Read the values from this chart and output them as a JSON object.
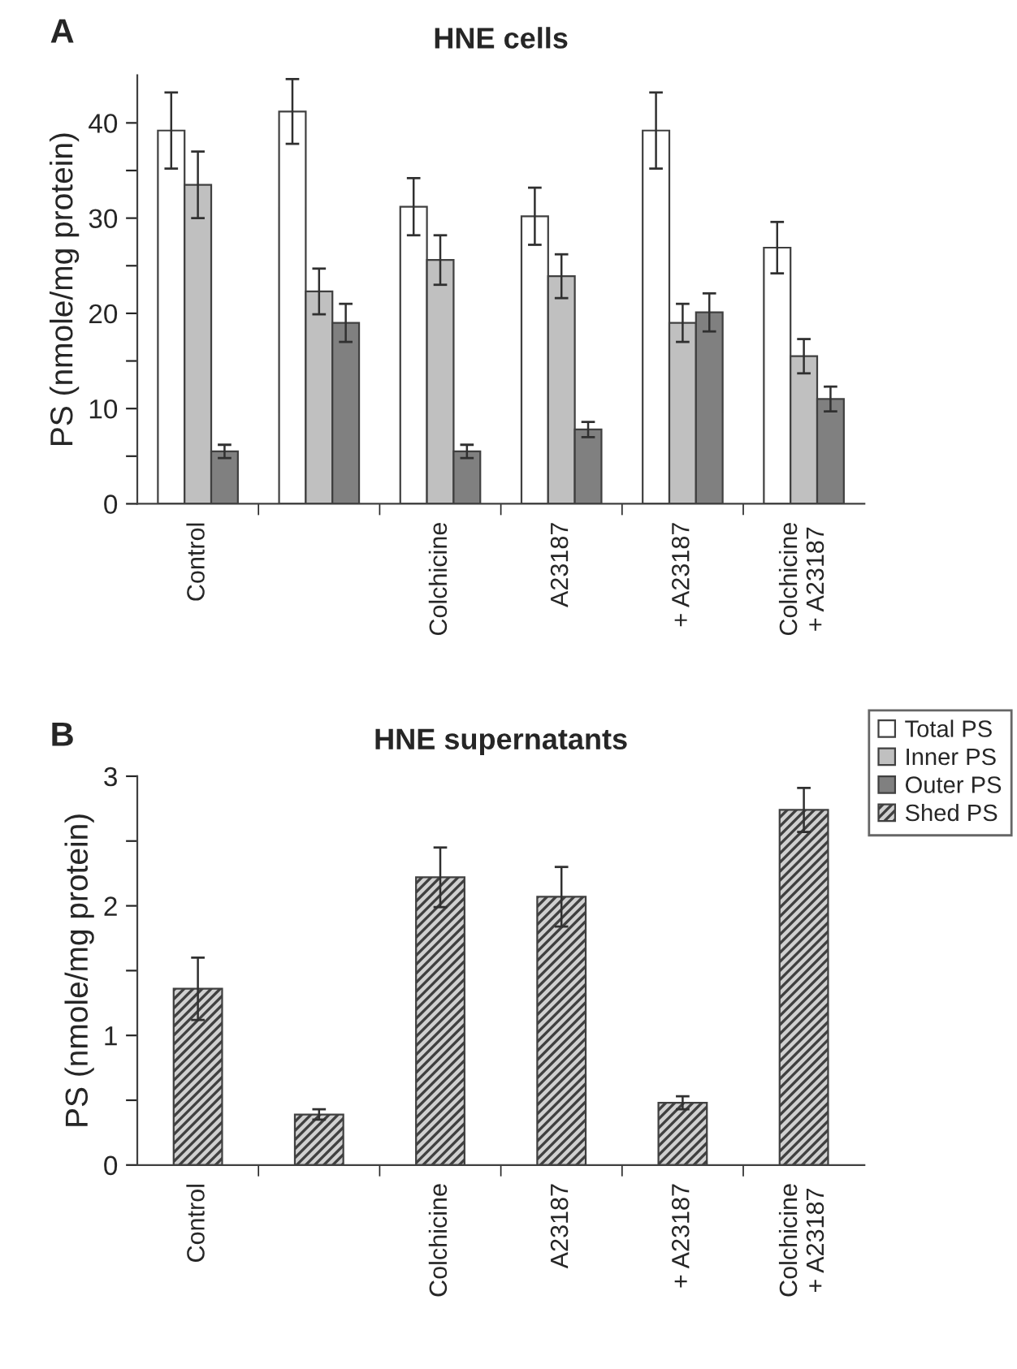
{
  "chart_data": [
    {
      "type": "bar",
      "title": "HNE cells",
      "ylabel": "PS (nmole/mg protein)",
      "annotations": [
        "A"
      ],
      "legend": "bottom right",
      "categories": [
        "Control",
        null,
        "Colchicine",
        "A23187",
        "+ A23187",
        "Colchicine\n+ A23187"
      ],
      "series": [
        {
          "name": "Total PS",
          "color": "#ffffff",
          "values": [
            39.2,
            41.2,
            31.2,
            30.2,
            39.2,
            26.9
          ],
          "errors": [
            4,
            3.4,
            3,
            3,
            4,
            2.7
          ]
        },
        {
          "name": "Inner PS",
          "color": "#c0c0c0",
          "values": [
            33.5,
            22.3,
            25.6,
            23.9,
            19,
            15.5
          ],
          "errors": [
            3.5,
            2.4,
            2.6,
            2.3,
            2,
            1.8
          ]
        },
        {
          "name": "Outer PS",
          "color": "#808080",
          "values": [
            5.5,
            19,
            5.5,
            7.8,
            20.1,
            11
          ],
          "errors": [
            0.7,
            2,
            0.7,
            0.8,
            2,
            1.3
          ]
        }
      ],
      "ylim": [
        0,
        45
      ],
      "yticks": [
        0,
        {
          "value": 5,
          "label": null
        },
        10,
        {
          "value": 15,
          "label": null
        },
        20,
        {
          "value": 25,
          "label": null
        },
        30,
        {
          "value": 35,
          "label": null
        },
        40
      ]
    },
    {
      "type": "bar",
      "title": "HNE supernatants",
      "ylabel": "PS (nmole/mg protein)",
      "annotations": [
        "B"
      ],
      "legend": "top right",
      "categories": [
        "Control",
        null,
        "Colchicine",
        "A23187",
        "+ A23187",
        "Colchicine\n+ A23187"
      ],
      "series": [
        {
          "name": "Shed PS",
          "color": "#404040",
          "values": [
            1.36,
            0.39,
            2.22,
            2.07,
            0.48,
            2.74
          ],
          "errors": [
            0.24,
            0.04,
            0.23,
            0.23,
            0.05,
            0.17
          ]
        }
      ],
      "ylim": [
        0,
        3
      ],
      "yticks": [
        0,
        {
          "value": 0.5,
          "label": null
        },
        1,
        {
          "value": 1.5,
          "label": null
        },
        2,
        {
          "value": 2.5,
          "label": null
        },
        3
      ]
    }
  ]
}
